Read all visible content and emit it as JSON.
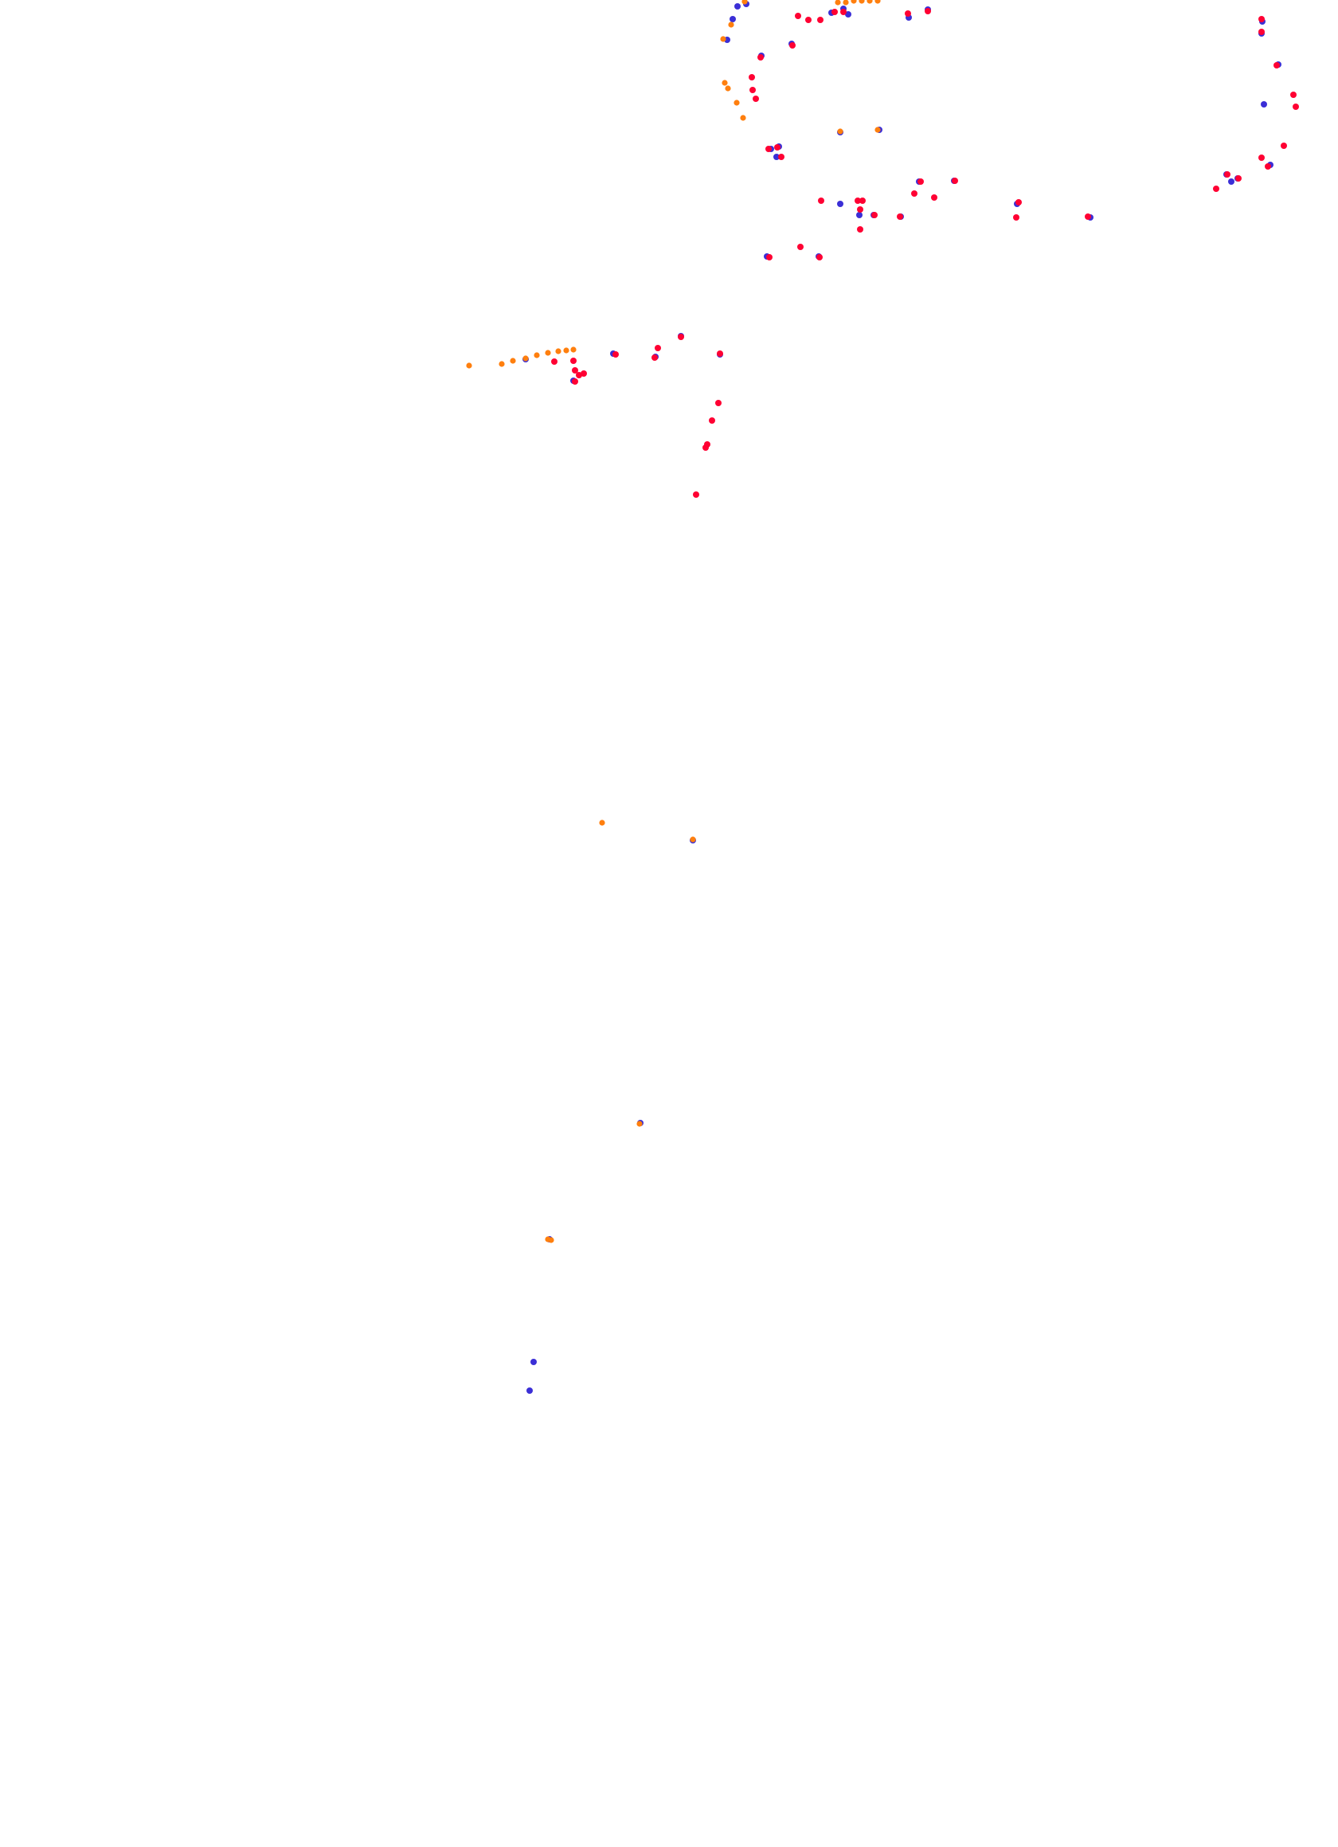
{
  "map": {
    "colors": {
      "background": "#ffffff",
      "blue": "#3b2fd6",
      "red": "#ff0033",
      "orange": "#ff7f0e"
    },
    "layers": [
      "blue",
      "red",
      "orange"
    ]
  }
}
